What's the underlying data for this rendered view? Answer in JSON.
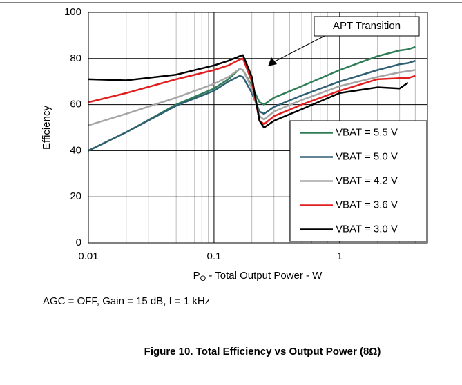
{
  "chart_data": {
    "type": "line",
    "x_label": {
      "base": "P",
      "sub": "O",
      "rest": " - Total Output Power - W"
    },
    "y_label": "Efficiency",
    "annotation": "APT Transition",
    "note": "AGC = OFF, Gain = 15 dB, f = 1 kHz",
    "title": "Figure 10. Total Efficiency vs Output Power (8Ω)",
    "x": [
      0.01,
      0.02,
      0.05,
      0.1,
      0.13,
      0.16,
      0.17,
      0.2,
      0.23,
      0.25,
      0.3,
      0.5,
      1,
      2,
      3,
      3.5,
      4
    ],
    "xlog": true,
    "xlim": [
      0.01,
      5
    ],
    "xticks": [
      0.01,
      0.1,
      1
    ],
    "ylim": [
      0,
      100
    ],
    "yticks": [
      0,
      20,
      40,
      60,
      80,
      100
    ],
    "grid": true,
    "legend": "lower right",
    "series": [
      {
        "name": "VBAT = 5.5 V",
        "color": "#2e7d57",
        "values": [
          40,
          48,
          60,
          67,
          71,
          75.5,
          75,
          68,
          61,
          60,
          63,
          68,
          75,
          81,
          83.5,
          84,
          85
        ]
      },
      {
        "name": "VBAT = 5.0 V",
        "color": "#2f5f73",
        "values": [
          40,
          48,
          59.5,
          66,
          70,
          72.5,
          72,
          65,
          57,
          56,
          59,
          64,
          70,
          75,
          77.5,
          78,
          79
        ]
      },
      {
        "name": "VBAT = 4.2 V",
        "color": "#a6a6a6",
        "values": [
          51,
          56,
          63,
          69,
          72,
          75.5,
          75,
          67,
          55,
          53.5,
          57,
          62,
          68,
          72,
          74,
          74.5,
          75
        ]
      },
      {
        "name": "VBAT = 3.6 V",
        "color": "#e02020",
        "values": [
          61,
          65,
          71,
          75,
          77,
          79.5,
          80,
          70,
          53,
          51.5,
          55,
          60,
          66,
          71,
          71.5,
          71.5,
          72.5
        ]
      },
      {
        "name": "VBAT = 3.0 V",
        "color": "#000000",
        "values": [
          71,
          70.5,
          73,
          77,
          79,
          81,
          81.5,
          72,
          53,
          50,
          53,
          58,
          65,
          67.5,
          67,
          69.5,
          null
        ]
      }
    ]
  }
}
